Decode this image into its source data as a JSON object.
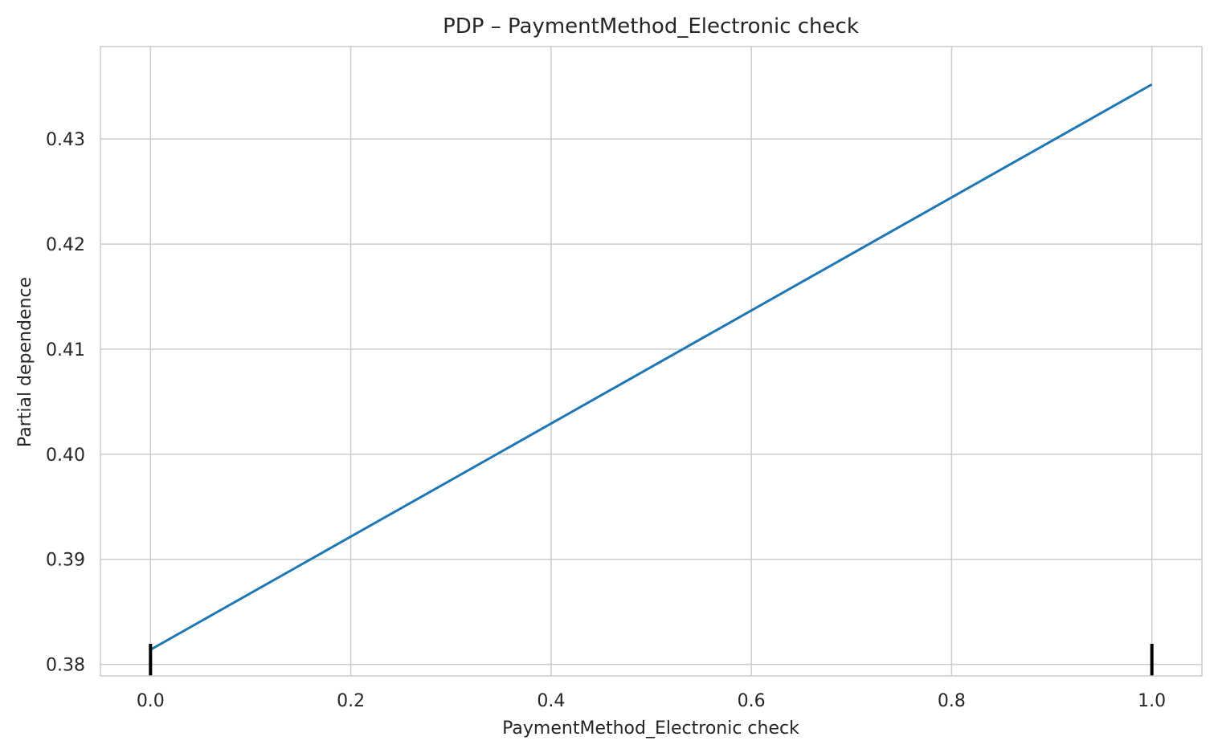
{
  "chart_data": {
    "type": "line",
    "title": "PDP – PaymentMethod_Electronic check",
    "xlabel": "PaymentMethod_Electronic check",
    "ylabel": "Partial dependence",
    "xlim": [
      -0.05,
      1.05
    ],
    "ylim": [
      0.3789,
      0.4388
    ],
    "x_ticks": [
      0.0,
      0.2,
      0.4,
      0.6,
      0.8,
      1.0
    ],
    "x_tick_labels": [
      "0.0",
      "0.2",
      "0.4",
      "0.6",
      "0.8",
      "1.0"
    ],
    "y_ticks": [
      0.38,
      0.39,
      0.4,
      0.41,
      0.42,
      0.43
    ],
    "y_tick_labels": [
      "0.38",
      "0.39",
      "0.40",
      "0.41",
      "0.42",
      "0.43"
    ],
    "grid": true,
    "series": [
      {
        "x": [
          0.0,
          1.0
        ],
        "y": [
          0.3814,
          0.4352
        ]
      }
    ],
    "rug": {
      "x": [
        0.0,
        1.0
      ],
      "color": "#000000"
    },
    "colors": {
      "line": "#1f77b4",
      "grid": "#cccccc",
      "rug": "#000000"
    }
  }
}
